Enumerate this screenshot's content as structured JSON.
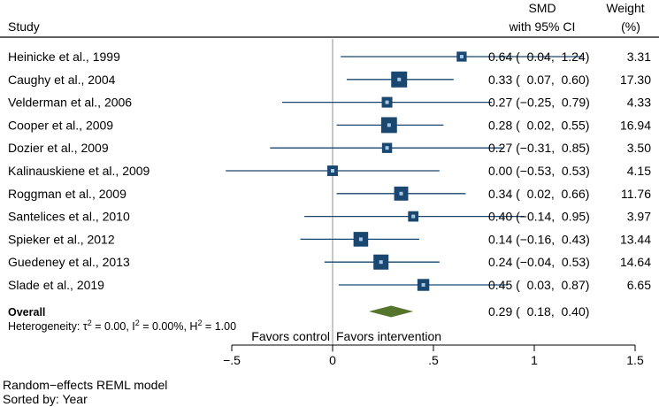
{
  "chart_data": {
    "type": "forest",
    "title": "",
    "columns": {
      "study": "Study",
      "effect_line1": "SMD",
      "effect_line2": "with 95% CI",
      "weight_line1": "Weight",
      "weight_line2": "(%)"
    },
    "x_axis": {
      "ticks": [
        -0.5,
        0,
        0.5,
        1,
        1.5
      ],
      "tick_labels": [
        "−.5",
        "0",
        ".5",
        "1",
        "1.5"
      ],
      "range": [
        -0.5,
        1.5
      ],
      "left_label": "Favors control",
      "right_label": "Favors intervention"
    },
    "studies": [
      {
        "name": "Heinicke et al., 1999",
        "smd": 0.64,
        "lo": 0.04,
        "hi": 1.24,
        "ci_text": "0.64 (  0.04,  1.24)",
        "weight": "3.31",
        "weight_value": 3.31
      },
      {
        "name": "Caughy et al., 2004",
        "smd": 0.33,
        "lo": 0.07,
        "hi": 0.6,
        "ci_text": "0.33 (  0.07,  0.60)",
        "weight": "17.30",
        "weight_value": 17.3
      },
      {
        "name": "Velderman et al., 2006",
        "smd": 0.27,
        "lo": -0.25,
        "hi": 0.79,
        "ci_text": "0.27 (−0.25,  0.79)",
        "weight": "4.33",
        "weight_value": 4.33
      },
      {
        "name": "Cooper et al., 2009",
        "smd": 0.28,
        "lo": 0.02,
        "hi": 0.55,
        "ci_text": "0.28 (  0.02,  0.55)",
        "weight": "16.94",
        "weight_value": 16.94
      },
      {
        "name": "Dozier et al., 2009",
        "smd": 0.27,
        "lo": -0.31,
        "hi": 0.85,
        "ci_text": "0.27 (−0.31,  0.85)",
        "weight": "3.50",
        "weight_value": 3.5
      },
      {
        "name": "Kalinauskiene et al., 2009",
        "smd": 0.0,
        "lo": -0.53,
        "hi": 0.53,
        "ci_text": "0.00 (−0.53,  0.53)",
        "weight": "4.15",
        "weight_value": 4.15
      },
      {
        "name": "Roggman et al., 2009",
        "smd": 0.34,
        "lo": 0.02,
        "hi": 0.66,
        "ci_text": "0.34 (  0.02,  0.66)",
        "weight": "11.76",
        "weight_value": 11.76
      },
      {
        "name": "Santelices et al., 2010",
        "smd": 0.4,
        "lo": -0.14,
        "hi": 0.95,
        "ci_text": "0.40 (−0.14,  0.95)",
        "weight": "3.97",
        "weight_value": 3.97
      },
      {
        "name": "Spieker et al., 2012",
        "smd": 0.14,
        "lo": -0.16,
        "hi": 0.43,
        "ci_text": "0.14 (−0.16,  0.43)",
        "weight": "13.44",
        "weight_value": 13.44
      },
      {
        "name": "Guedeney et al., 2013",
        "smd": 0.24,
        "lo": -0.04,
        "hi": 0.53,
        "ci_text": "0.24 (−0.04,  0.53)",
        "weight": "14.64",
        "weight_value": 14.64
      },
      {
        "name": "Slade et al., 2019",
        "smd": 0.45,
        "lo": 0.03,
        "hi": 0.87,
        "ci_text": "0.45 (  0.03,  0.87)",
        "weight": "6.65",
        "weight_value": 6.65
      }
    ],
    "overall": {
      "name": "Overall",
      "smd": 0.29,
      "lo": 0.18,
      "hi": 0.4,
      "ci_text": "0.29 (  0.18,  0.40)",
      "heterogeneity_prefix": "Heterogeneity: ",
      "tau_sym": "τ",
      "sup2": "2",
      "tau_value": " = 0.00, I",
      "i_value": " = 0.00%, H",
      "h_value": " = 1.00"
    },
    "colors": {
      "marker": "#1a476f",
      "marker_center": "#a6c8e6",
      "diamond": "#55752f",
      "ref_line": "#909090"
    }
  },
  "footer": {
    "model": "Random−effects REML model",
    "sort": "Sorted by: Year"
  }
}
